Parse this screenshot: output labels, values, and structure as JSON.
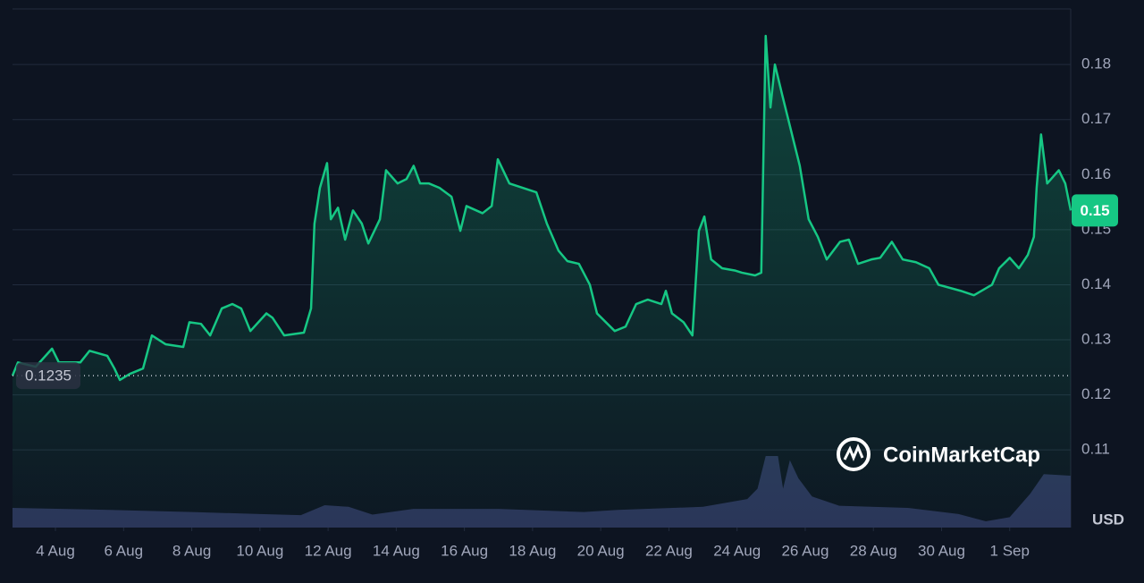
{
  "chart_data": {
    "type": "line",
    "x": [
      2.74,
      2.9,
      3.42,
      3.9,
      4.1,
      4.73,
      5.0,
      5.52,
      5.73,
      5.89,
      6.18,
      6.57,
      6.83,
      7.23,
      7.75,
      7.93,
      8.27,
      8.54,
      8.88,
      9.19,
      9.45,
      9.72,
      10.19,
      10.37,
      10.71,
      11.29,
      11.5,
      11.6,
      11.76,
      11.97,
      12.08,
      12.29,
      12.5,
      12.73,
      12.99,
      13.18,
      13.52,
      13.7,
      14.04,
      14.3,
      14.51,
      14.7,
      14.96,
      15.27,
      15.62,
      15.88,
      16.06,
      16.53,
      16.8,
      16.98,
      17.32,
      17.71,
      18.11,
      18.42,
      18.76,
      19.02,
      19.36,
      19.68,
      19.89,
      20.41,
      20.73,
      21.04,
      21.38,
      21.78,
      21.91,
      22.09,
      22.43,
      22.69,
      22.88,
      23.04,
      23.24,
      23.56,
      23.93,
      24.14,
      24.53,
      24.71,
      24.84,
      24.98,
      25.11,
      25.32,
      25.58,
      25.84,
      26.1,
      26.37,
      26.63,
      27.02,
      27.28,
      27.55,
      27.94,
      28.2,
      28.54,
      28.86,
      29.25,
      29.64,
      29.91,
      30.56,
      30.95,
      31.48,
      31.69,
      32.0,
      32.27,
      32.53,
      32.71,
      32.79,
      32.92,
      33.1,
      33.44,
      33.63,
      33.79
    ],
    "series": [
      {
        "name": "Price",
        "color": "#16c784",
        "values": [
          0.1235,
          0.1259,
          0.1251,
          0.1284,
          0.1259,
          0.1259,
          0.128,
          0.1271,
          0.1248,
          0.1227,
          0.1238,
          0.1248,
          0.1308,
          0.1292,
          0.1287,
          0.1332,
          0.1329,
          0.1308,
          0.1357,
          0.1365,
          0.1357,
          0.1316,
          0.1348,
          0.134,
          0.1308,
          0.1313,
          0.1357,
          0.1511,
          0.1576,
          0.1621,
          0.1519,
          0.154,
          0.1482,
          0.1535,
          0.1511,
          0.1475,
          0.1519,
          0.1608,
          0.1584,
          0.1592,
          0.1616,
          0.1584,
          0.1584,
          0.1576,
          0.156,
          0.1498,
          0.1543,
          0.153,
          0.1543,
          0.1628,
          0.1584,
          0.1576,
          0.1568,
          0.1511,
          0.1462,
          0.1443,
          0.1438,
          0.14,
          0.1348,
          0.1316,
          0.1324,
          0.1365,
          0.1373,
          0.1365,
          0.1389,
          0.1348,
          0.1332,
          0.1308,
          0.1498,
          0.1524,
          0.1446,
          0.143,
          0.1426,
          0.1422,
          0.1417,
          0.1422,
          0.1852,
          0.1722,
          0.18,
          0.1746,
          0.1681,
          0.1616,
          0.1519,
          0.1487,
          0.1446,
          0.1478,
          0.1482,
          0.1438,
          0.1446,
          0.1449,
          0.1478,
          0.1446,
          0.1441,
          0.143,
          0.14,
          0.1389,
          0.1381,
          0.14,
          0.143,
          0.1449,
          0.143,
          0.1454,
          0.1487,
          0.1576,
          0.1673,
          0.1584,
          0.1608,
          0.1584,
          0.1535
        ]
      }
    ],
    "volume": {
      "color": "#2b3358",
      "axis": "y2",
      "x": [
        2.74,
        5,
        8,
        10,
        11.2,
        11.9,
        12.6,
        13.3,
        14.5,
        17,
        19.5,
        20.5,
        23,
        24.3,
        24.6,
        24.84,
        25.2,
        25.35,
        25.55,
        25.8,
        26.2,
        27,
        29,
        30.5,
        31.3,
        32,
        32.6,
        33,
        33.79
      ],
      "values": [
        3.8,
        3.5,
        3.0,
        2.6,
        2.4,
        4.3,
        4.0,
        2.5,
        3.6,
        3.6,
        3.0,
        3.4,
        4.0,
        5.5,
        7.5,
        13.8,
        13.8,
        7.5,
        13.0,
        9.5,
        6.0,
        4.2,
        3.8,
        2.6,
        1.2,
        2.0,
        6.5,
        10.3,
        10.0
      ]
    },
    "xlim": [
      2.74,
      33.79
    ],
    "xticks": [
      {
        "value": 4,
        "label": "4 Aug"
      },
      {
        "value": 6,
        "label": "6 Aug"
      },
      {
        "value": 8,
        "label": "8 Aug"
      },
      {
        "value": 10,
        "label": "10 Aug"
      },
      {
        "value": 12,
        "label": "12 Aug"
      },
      {
        "value": 14,
        "label": "14 Aug"
      },
      {
        "value": 16,
        "label": "16 Aug"
      },
      {
        "value": 18,
        "label": "18 Aug"
      },
      {
        "value": 20,
        "label": "20 Aug"
      },
      {
        "value": 22,
        "label": "22 Aug"
      },
      {
        "value": 24,
        "label": "24 Aug"
      },
      {
        "value": 26,
        "label": "26 Aug"
      },
      {
        "value": 28,
        "label": "28 Aug"
      },
      {
        "value": 30,
        "label": "30 Aug"
      },
      {
        "value": 32,
        "label": "1 Sep"
      }
    ],
    "ylim": [
      0.0959,
      0.1901
    ],
    "yticks": [
      0.11,
      0.12,
      0.13,
      0.14,
      0.15,
      0.16,
      0.17,
      0.18
    ],
    "y2lim": [
      0,
      100
    ],
    "grid": true,
    "open_price": {
      "value": 0.1235,
      "label": "0.1235"
    },
    "current_price": {
      "value": 0.1535,
      "label": "0.15"
    },
    "y_unit": "USD",
    "watermark": "CoinMarketCap"
  }
}
